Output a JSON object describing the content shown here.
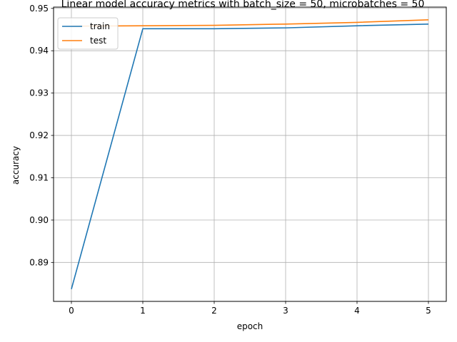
{
  "chart_data": {
    "type": "line",
    "title": "Linear model accuracy metrics with batch_size = 50, microbatches = 50",
    "xlabel": "epoch",
    "ylabel": "accuracy",
    "x": [
      0,
      1,
      2,
      3,
      4,
      5
    ],
    "xticks": [
      "0",
      "1",
      "2",
      "3",
      "4",
      "5"
    ],
    "yticks": [
      "0.89",
      "0.90",
      "0.91",
      "0.92",
      "0.93",
      "0.94",
      "0.95"
    ],
    "xlim": [
      -0.25,
      5.25
    ],
    "ylim": [
      0.8808,
      0.9503
    ],
    "grid": true,
    "legend_position": "top-left",
    "series": [
      {
        "name": "train",
        "color": "#1f77b4",
        "values": [
          0.8837,
          0.9452,
          0.9452,
          0.9454,
          0.9459,
          0.9463
        ]
      },
      {
        "name": "test",
        "color": "#ff7f0e",
        "values": [
          0.9458,
          0.9459,
          0.946,
          0.9463,
          0.9467,
          0.9473
        ]
      }
    ]
  }
}
